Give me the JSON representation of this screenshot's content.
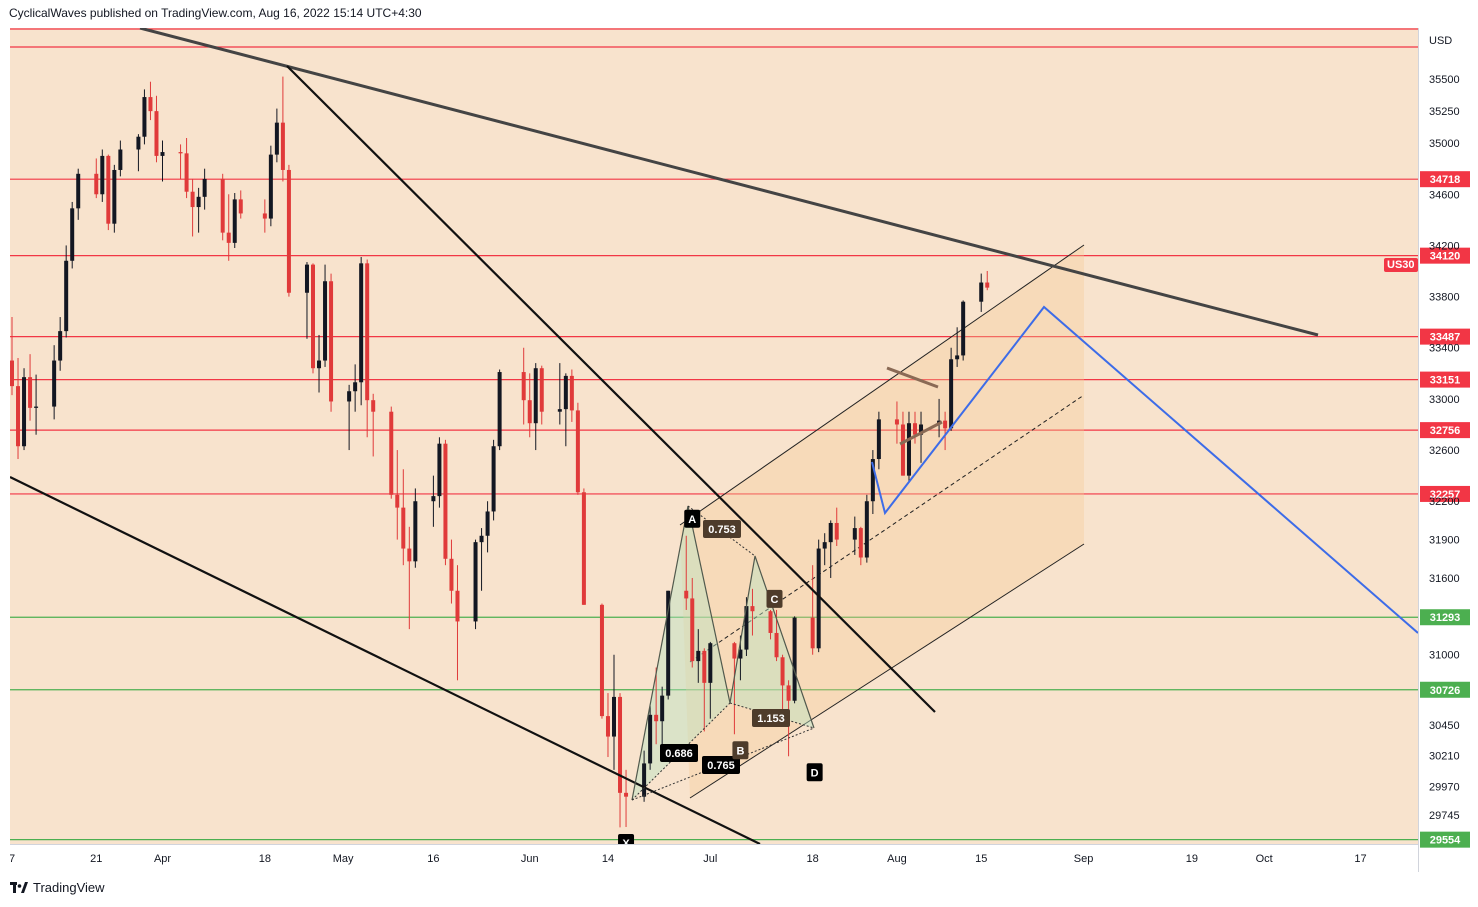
{
  "header": {
    "publisher_line": "CyclicalWaves published on TradingView.com, Aug 16, 2022 15:14 UTC+4:30"
  },
  "footer": {
    "brand": "TradingView"
  },
  "colors": {
    "background": "#f8e3cd",
    "resistance": "#f23645",
    "support": "#4caf50",
    "projection": "#3d6ce8",
    "trendline": "#333333",
    "candle_up": "#131722",
    "candle_down": "#e03a3a"
  },
  "chart_data": {
    "type": "candlestick",
    "symbol_badge": "US30",
    "currency": "USD",
    "x_ticks": [
      "7",
      "21",
      "Apr",
      "18",
      "May",
      "16",
      "Jun",
      "14",
      "Jul",
      "18",
      "Aug",
      "15",
      "Sep",
      "19",
      "Oct",
      "17"
    ],
    "y_ticks": [
      35500,
      35250,
      35000,
      34600,
      34200,
      33800,
      33400,
      33000,
      32600,
      32200,
      31900,
      31600,
      31000,
      30450,
      30210,
      29970,
      29745
    ],
    "ylim": [
      29520,
      35900
    ],
    "horizontal_levels": [
      {
        "label": "34718",
        "value": 34718,
        "kind": "resistance"
      },
      {
        "label": "34120",
        "value": 34120,
        "kind": "resistance"
      },
      {
        "label": "33487",
        "value": 33487,
        "kind": "resistance"
      },
      {
        "label": "33151",
        "value": 33151,
        "kind": "resistance"
      },
      {
        "label": "32756",
        "value": 32756,
        "kind": "resistance"
      },
      {
        "label": "32257",
        "value": 32257,
        "kind": "resistance"
      },
      {
        "label": "31293",
        "value": 31293,
        "kind": "support"
      },
      {
        "label": "30726",
        "value": 30726,
        "kind": "support"
      },
      {
        "label": "29554",
        "value": 29554,
        "kind": "support"
      }
    ],
    "harmonic_points": [
      {
        "label": "X",
        "date": "2022-06-17",
        "value": 29653
      },
      {
        "label": "A",
        "date": "2022-06-28",
        "value": 31930
      },
      {
        "label": "B",
        "date": "2022-07-06",
        "value": 30378
      },
      {
        "label": "C",
        "date": "2022-07-10",
        "value": 31515
      },
      {
        "label": "D",
        "date": "2022-07-17",
        "value": 30206
      }
    ],
    "harmonic_ratios": [
      "0.753",
      "1.153",
      "0.686",
      "0.765"
    ],
    "ohlc": [
      [
        "2022-03-07",
        33300,
        33640,
        33030,
        33100
      ],
      [
        "2022-03-08",
        33100,
        33320,
        32530,
        32630
      ],
      [
        "2022-03-09",
        32630,
        33240,
        32600,
        33170
      ],
      [
        "2022-03-10",
        33170,
        33350,
        32830,
        32930
      ],
      [
        "2022-03-11",
        32930,
        33190,
        32720,
        32940
      ],
      [
        "2022-03-14",
        32940,
        33420,
        32840,
        33300
      ],
      [
        "2022-03-15",
        33300,
        33640,
        33220,
        33530
      ],
      [
        "2022-03-16",
        33530,
        34200,
        33480,
        34080
      ],
      [
        "2022-03-17",
        34080,
        34540,
        34020,
        34490
      ],
      [
        "2022-03-18",
        34490,
        34800,
        34400,
        34760
      ],
      [
        "2022-03-21",
        34760,
        34880,
        34570,
        34600
      ],
      [
        "2022-03-22",
        34600,
        34950,
        34540,
        34900
      ],
      [
        "2022-03-23",
        34900,
        34910,
        34320,
        34370
      ],
      [
        "2022-03-24",
        34370,
        34830,
        34300,
        34790
      ],
      [
        "2022-03-25",
        34790,
        35020,
        34740,
        34950
      ],
      [
        "2022-03-28",
        34950,
        35070,
        34780,
        35050
      ],
      [
        "2022-03-29",
        35050,
        35420,
        34990,
        35360
      ],
      [
        "2022-03-30",
        35360,
        35480,
        35180,
        35250
      ],
      [
        "2022-03-31",
        35250,
        35370,
        34850,
        34900
      ],
      [
        "2022-04-01",
        34900,
        35020,
        34700,
        34930
      ],
      [
        "2022-04-04",
        34930,
        34990,
        34720,
        34920
      ],
      [
        "2022-04-05",
        34920,
        35040,
        34570,
        34620
      ],
      [
        "2022-04-06",
        34620,
        34720,
        34270,
        34500
      ],
      [
        "2022-04-07",
        34500,
        34650,
        34300,
        34580
      ],
      [
        "2022-04-08",
        34580,
        34800,
        34480,
        34720
      ],
      [
        "2022-04-11",
        34720,
        34760,
        34240,
        34300
      ],
      [
        "2022-04-12",
        34300,
        34600,
        34080,
        34220
      ],
      [
        "2022-04-13",
        34220,
        34610,
        34180,
        34560
      ],
      [
        "2022-04-14",
        34560,
        34630,
        34410,
        34450
      ],
      [
        "2022-04-18",
        34450,
        34560,
        34300,
        34410
      ],
      [
        "2022-04-19",
        34410,
        34980,
        34350,
        34910
      ],
      [
        "2022-04-20",
        34910,
        35270,
        34850,
        35160
      ],
      [
        "2022-04-21",
        35160,
        35520,
        34700,
        34790
      ],
      [
        "2022-04-22",
        34790,
        34830,
        33800,
        33830
      ],
      [
        "2022-04-25",
        33830,
        34070,
        33470,
        34050
      ],
      [
        "2022-04-26",
        34050,
        34060,
        33200,
        33240
      ],
      [
        "2022-04-27",
        33240,
        33500,
        33050,
        33300
      ],
      [
        "2022-04-28",
        33300,
        34050,
        33250,
        33920
      ],
      [
        "2022-04-29",
        33920,
        33980,
        32900,
        32980
      ],
      [
        "2022-05-02",
        32980,
        33110,
        32600,
        33060
      ],
      [
        "2022-05-03",
        33060,
        33270,
        32900,
        33130
      ],
      [
        "2022-05-04",
        33130,
        34110,
        32950,
        34060
      ],
      [
        "2022-05-05",
        34060,
        34090,
        32700,
        32990
      ],
      [
        "2022-05-06",
        32990,
        33040,
        32550,
        32900
      ],
      [
        "2022-05-09",
        32900,
        32940,
        32220,
        32250
      ],
      [
        "2022-05-10",
        32250,
        32600,
        31900,
        32150
      ],
      [
        "2022-05-11",
        32150,
        32450,
        31700,
        31830
      ],
      [
        "2022-05-12",
        31830,
        32000,
        31200,
        31730
      ],
      [
        "2022-05-13",
        31730,
        32300,
        31680,
        32200
      ],
      [
        "2022-05-16",
        32200,
        32400,
        32000,
        32240
      ],
      [
        "2022-05-17",
        32240,
        32700,
        32150,
        32650
      ],
      [
        "2022-05-18",
        32650,
        32680,
        31700,
        31750
      ],
      [
        "2022-05-19",
        31750,
        31900,
        31400,
        31500
      ],
      [
        "2022-05-20",
        31500,
        31700,
        30800,
        31260
      ],
      [
        "2022-05-23",
        31260,
        31900,
        31200,
        31880
      ],
      [
        "2022-05-24",
        31880,
        31990,
        31500,
        31930
      ],
      [
        "2022-05-25",
        31930,
        32200,
        31800,
        32120
      ],
      [
        "2022-05-26",
        32120,
        32680,
        32050,
        32630
      ],
      [
        "2022-05-27",
        32630,
        33230,
        32600,
        33210
      ],
      [
        "2022-05-31",
        33210,
        33400,
        32800,
        32990
      ],
      [
        "2022-06-01",
        32990,
        33200,
        32700,
        32810
      ],
      [
        "2022-06-02",
        32810,
        33280,
        32600,
        33240
      ],
      [
        "2022-06-03",
        33240,
        33260,
        32800,
        32900
      ],
      [
        "2022-06-06",
        32900,
        33280,
        32800,
        32920
      ],
      [
        "2022-06-07",
        32920,
        33200,
        32630,
        33180
      ],
      [
        "2022-06-08",
        33180,
        33230,
        32820,
        32910
      ],
      [
        "2022-06-09",
        32910,
        32970,
        32250,
        32270
      ],
      [
        "2022-06-10",
        32270,
        32300,
        31390,
        31390
      ],
      [
        "2022-06-13",
        31390,
        31400,
        30500,
        30520
      ],
      [
        "2022-06-14",
        30520,
        30700,
        30200,
        30360
      ],
      [
        "2022-06-15",
        30360,
        31000,
        30100,
        30670
      ],
      [
        "2022-06-16",
        30670,
        30700,
        29650,
        29920
      ],
      [
        "2022-06-17",
        29920,
        30100,
        29653,
        29890
      ],
      [
        "2022-06-20",
        29890,
        30250,
        29850,
        30150
      ],
      [
        "2022-06-21",
        30150,
        30600,
        30100,
        30530
      ],
      [
        "2022-06-22",
        30530,
        30900,
        30300,
        30480
      ],
      [
        "2022-06-23",
        30480,
        30750,
        30200,
        30680
      ],
      [
        "2022-06-24",
        30680,
        31500,
        30650,
        31500
      ],
      [
        "2022-06-27",
        31500,
        31930,
        31350,
        31440
      ],
      [
        "2022-06-28",
        31440,
        31600,
        30900,
        30950
      ],
      [
        "2022-06-29",
        30950,
        31200,
        30780,
        31030
      ],
      [
        "2022-06-30",
        31030,
        31050,
        30400,
        30780
      ],
      [
        "2022-07-01",
        30780,
        31100,
        30500,
        31090
      ],
      [
        "2022-07-05",
        31090,
        31100,
        30378,
        30970
      ],
      [
        "2022-07-06",
        30970,
        31150,
        30800,
        31040
      ],
      [
        "2022-07-07",
        31040,
        31450,
        30990,
        31380
      ],
      [
        "2022-07-08",
        31380,
        31515,
        31150,
        31340
      ],
      [
        "2022-07-11",
        31340,
        31350,
        31120,
        31170
      ],
      [
        "2022-07-12",
        31170,
        31350,
        30950,
        30980
      ],
      [
        "2022-07-13",
        30980,
        31000,
        30500,
        30760
      ],
      [
        "2022-07-14",
        30760,
        30800,
        30206,
        30640
      ],
      [
        "2022-07-15",
        30640,
        31300,
        30620,
        31290
      ],
      [
        "2022-07-18",
        31290,
        31700,
        31000,
        31050
      ],
      [
        "2022-07-19",
        31050,
        31900,
        31020,
        31830
      ],
      [
        "2022-07-20",
        31830,
        31950,
        31700,
        31880
      ],
      [
        "2022-07-21",
        31880,
        32050,
        31600,
        32030
      ],
      [
        "2022-07-22",
        32030,
        32150,
        31850,
        31900
      ],
      [
        "2022-07-25",
        31900,
        32080,
        31780,
        31990
      ],
      [
        "2022-07-26",
        31990,
        32000,
        31700,
        31760
      ],
      [
        "2022-07-27",
        31760,
        32250,
        31720,
        32200
      ],
      [
        "2022-07-28",
        32200,
        32600,
        32100,
        32530
      ],
      [
        "2022-07-29",
        32530,
        32900,
        32450,
        32840
      ],
      [
        "2022-08-01",
        32840,
        32980,
        32650,
        32800
      ],
      [
        "2022-08-02",
        32800,
        32900,
        32400,
        32400
      ],
      [
        "2022-08-03",
        32400,
        32900,
        32350,
        32810
      ],
      [
        "2022-08-04",
        32810,
        32900,
        32650,
        32720
      ],
      [
        "2022-08-05",
        32720,
        32900,
        32500,
        32800
      ],
      [
        "2022-08-08",
        32800,
        33000,
        32700,
        32830
      ],
      [
        "2022-08-09",
        32830,
        32900,
        32600,
        32770
      ],
      [
        "2022-08-10",
        32770,
        33400,
        32750,
        33310
      ],
      [
        "2022-08-11",
        33310,
        33560,
        33250,
        33340
      ],
      [
        "2022-08-12",
        33340,
        33770,
        33300,
        33760
      ],
      [
        "2022-08-15",
        33760,
        33980,
        33680,
        33910
      ],
      [
        "2022-08-16",
        33910,
        34000,
        33850,
        33870
      ]
    ]
  }
}
